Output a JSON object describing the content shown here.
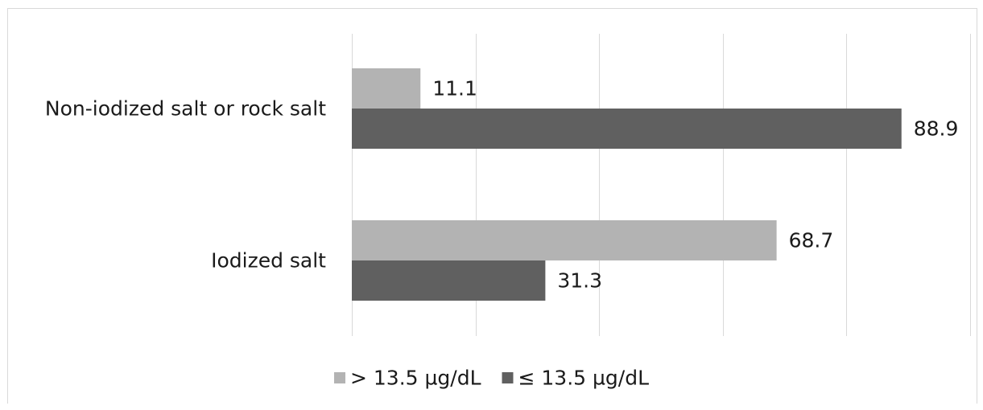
{
  "chart_data": {
    "type": "bar",
    "orientation": "horizontal",
    "categories": [
      "Non-iodized salt or rock salt",
      "Iodized salt"
    ],
    "series": [
      {
        "name": "> 13.5 µg/dL",
        "values": [
          11.1,
          68.7
        ],
        "color": "#b3b3b3"
      },
      {
        "name": "≤ 13.5 µg/dL",
        "values": [
          88.9,
          31.3
        ],
        "color": "#606060"
      }
    ],
    "xlim": [
      0,
      100
    ],
    "x_major_step": 20,
    "x_tick_labels_visible": false,
    "data_labels": true,
    "grid": "vertical",
    "legend_position": "bottom",
    "title": "",
    "xlabel": "",
    "ylabel": ""
  }
}
